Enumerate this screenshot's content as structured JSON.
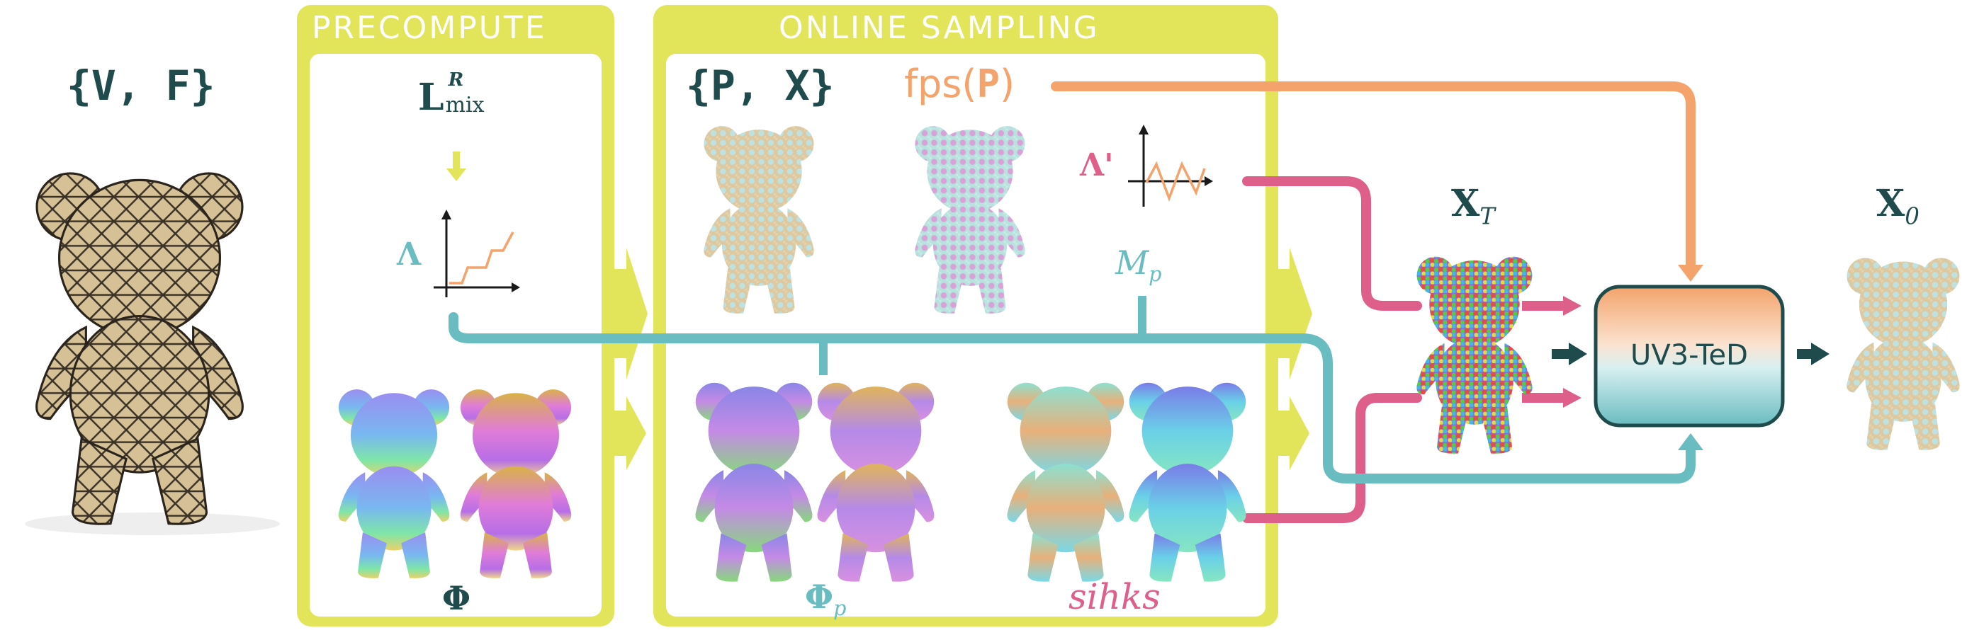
{
  "colors": {
    "yellow": "#e2e55a",
    "dark_teal": "#1f4b4d",
    "orange": "#f3a36b",
    "teal": "#69bcc0",
    "pink": "#de5f8a",
    "bear_tan": "#d8c49b"
  },
  "labels": {
    "mesh": "{V, F}",
    "precompute": "PRECOMPUTE",
    "online_sampling": "ONLINE SAMPLING",
    "laplacian": "L",
    "laplacian_sub": "mix",
    "laplacian_sup": "R",
    "lambda": "Λ",
    "phi": "Φ",
    "px": "{P, X}",
    "fps_fn": "fps(",
    "fps_arg": "P",
    "fps_close": ")",
    "lambda_prime": "Λ'",
    "mp": "M",
    "mp_sub": "p",
    "phi_p": "Φ",
    "phi_p_sub": "p",
    "sihks": "sihks",
    "xt": "X",
    "xt_sub": "T",
    "uv3ted": "UV3-TeD",
    "x0": "X",
    "x0_sub": "0"
  }
}
